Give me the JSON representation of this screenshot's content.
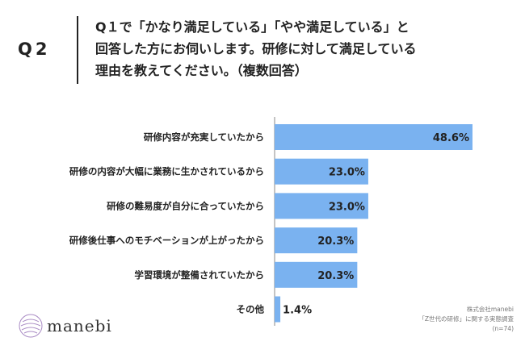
{
  "header": {
    "q_number": "Q2",
    "question_lines": [
      "Q１で「かなり満足している」「やや満足している」と",
      "回答した方にお伺いします。研修に対して満足している",
      "理由を教えてください。（複数回答）"
    ]
  },
  "chart_data": {
    "type": "bar",
    "orientation": "horizontal",
    "categories": [
      "研修内容が充実していたから",
      "研修の内容が大幅に業務に生かされているから",
      "研修の難易度が自分に合っていたから",
      "研修後仕事へのモチベーションが上がったから",
      "学習環境が整備されていたから",
      "その他"
    ],
    "values": [
      48.6,
      23.0,
      23.0,
      20.3,
      20.3,
      1.4
    ],
    "value_labels": [
      "48.6%",
      "23.0%",
      "23.0%",
      "20.3%",
      "20.3%",
      "1.4%"
    ],
    "xlim": [
      0,
      50
    ],
    "grid": false,
    "bar_color": "#7ab2f0"
  },
  "logo": {
    "name": "manebi",
    "icon": "manebi-logo-icon"
  },
  "source": {
    "lines": [
      "株式会社manebi",
      "「Z世代の研修」に関する実態調査",
      "(n=74)"
    ]
  }
}
